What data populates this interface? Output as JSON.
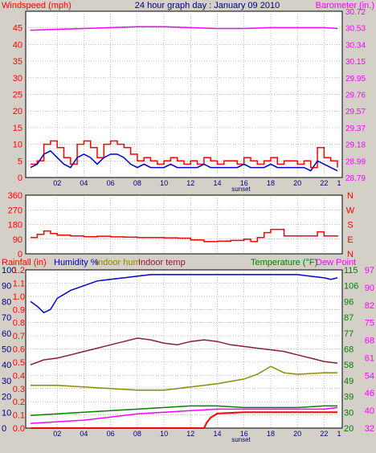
{
  "colors": {
    "background": "#d4d0c8",
    "plot_bg": "#ffffff",
    "grid": "#808080",
    "red": "#ff0000",
    "blue": "#0000cc",
    "magenta": "#ff00ff",
    "maroon": "#8b1a3a",
    "olive": "#8b8b00",
    "green": "#008000"
  },
  "chart_data": [
    {
      "type": "line",
      "title": "24 hour graph day : January 09 2010",
      "ylabel": "Windspeed (mph)",
      "y2label": "Barometer (in.)",
      "x_ticks": [
        "02",
        "04",
        "06",
        "08",
        "10",
        "12",
        "14",
        "16",
        "18",
        "20",
        "22"
      ],
      "x_annotation": "sunset",
      "end_tick": "1",
      "ylim": [
        0,
        50
      ],
      "y_ticks": [
        0,
        5,
        10,
        15,
        20,
        25,
        30,
        35,
        40,
        45
      ],
      "y2_ticks": [
        "28.79",
        "28.99",
        "29.18",
        "29.37",
        "29.57",
        "29.76",
        "29.95",
        "30.15",
        "30.34",
        "30.53",
        "30.72"
      ],
      "series": [
        {
          "key": "gust",
          "color_key": "red",
          "x": [
            0,
            0.5,
            1,
            1.5,
            2,
            2.5,
            3,
            3.5,
            4,
            4.5,
            5,
            5.5,
            6,
            6.5,
            7,
            7.5,
            8,
            8.5,
            9,
            9.5,
            10,
            10.5,
            11,
            11.5,
            12,
            12.5,
            13,
            13.5,
            14,
            14.5,
            15,
            15.5,
            16,
            16.5,
            17,
            17.5,
            18,
            18.5,
            19,
            19.5,
            20,
            20.5,
            21,
            21.5,
            22,
            22.5,
            23
          ],
          "values": [
            4,
            5,
            10,
            11,
            9,
            6,
            4,
            10,
            11,
            9,
            6,
            10,
            11,
            10,
            9,
            7,
            5,
            6,
            5,
            4,
            5,
            6,
            5,
            4,
            5,
            4,
            6,
            5,
            4,
            5,
            5,
            4,
            6,
            5,
            4,
            5,
            6,
            4,
            5,
            5,
            4,
            5,
            3,
            9,
            6,
            5,
            3
          ]
        },
        {
          "key": "average",
          "color_key": "blue",
          "x": [
            0,
            0.5,
            1,
            1.5,
            2,
            2.5,
            3,
            3.5,
            4,
            4.5,
            5,
            5.5,
            6,
            6.5,
            7,
            7.5,
            8,
            8.5,
            9,
            9.5,
            10,
            10.5,
            11,
            11.5,
            12,
            12.5,
            13,
            13.5,
            14,
            14.5,
            15,
            15.5,
            16,
            16.5,
            17,
            17.5,
            18,
            18.5,
            19,
            19.5,
            20,
            20.5,
            21,
            21.5,
            22,
            22.5,
            23
          ],
          "values": [
            3,
            4,
            7,
            8,
            6,
            4,
            3,
            6,
            7,
            6,
            4,
            6,
            7,
            7,
            6,
            4,
            3,
            4,
            3,
            3,
            3,
            4,
            3,
            3,
            3,
            3,
            4,
            3,
            3,
            3,
            3,
            3,
            4,
            3,
            3,
            3,
            4,
            3,
            3,
            3,
            3,
            3,
            2,
            5,
            4,
            3,
            2
          ]
        },
        {
          "key": "barometer",
          "color_key": "magenta",
          "axis": "right",
          "x": [
            0,
            2,
            4,
            6,
            8,
            10,
            12,
            14,
            16,
            18,
            20,
            22,
            23
          ],
          "values": [
            30.5,
            30.51,
            30.52,
            30.53,
            30.54,
            30.54,
            30.53,
            30.52,
            30.52,
            30.53,
            30.53,
            30.53,
            30.52
          ]
        }
      ]
    },
    {
      "type": "line",
      "title": "",
      "ylabel": "",
      "x_ticks": [],
      "ylim": [
        0,
        360
      ],
      "y_ticks": [
        0,
        90,
        180,
        270,
        360
      ],
      "y2_ticks": [
        "N",
        "E",
        "S",
        "W",
        "N"
      ],
      "series": [
        {
          "key": "wind_direction",
          "color_key": "red",
          "x": [
            0,
            0.5,
            1,
            1.5,
            2,
            3,
            4,
            5,
            6,
            7,
            8,
            9,
            10,
            11,
            12,
            13,
            14,
            15,
            16,
            16.5,
            17,
            17.5,
            18,
            19,
            20,
            21,
            21.5,
            22,
            23
          ],
          "values": [
            100,
            120,
            140,
            125,
            115,
            110,
            105,
            108,
            104,
            102,
            100,
            100,
            98,
            96,
            85,
            75,
            78,
            82,
            90,
            75,
            100,
            130,
            150,
            110,
            110,
            110,
            135,
            110,
            105
          ]
        }
      ]
    },
    {
      "type": "line",
      "title": "",
      "ylabel": "Rainfall (in)",
      "legend": [
        "Humidity %",
        "Indoor hum",
        "Indoor temp"
      ],
      "right_legend": [
        "Temperature (°F)",
        "Dew Point"
      ],
      "x_ticks": [
        "02",
        "04",
        "06",
        "08",
        "10",
        "12",
        "14",
        "16",
        "18",
        "20",
        "22"
      ],
      "x_annotation": "sunset",
      "end_tick": "1",
      "ylim": [
        0,
        1.2
      ],
      "y_ticks_left_humidity": [
        "0",
        "10",
        "20",
        "30",
        "40",
        "50",
        "60",
        "70",
        "80",
        "90",
        "100"
      ],
      "y_ticks_left_rain": [
        "0.0",
        "0.1",
        "0.2",
        "0.3",
        "0.4",
        "0.5",
        "0.6",
        "0.7",
        "0.8",
        "0.9",
        "1.0",
        "1.1",
        "1.2"
      ],
      "y2_ticks_a": [
        "20",
        "30",
        "39",
        "49",
        "58",
        "68",
        "77",
        "87",
        "96",
        "106",
        "115"
      ],
      "y2_ticks_b": [
        "32",
        "40",
        "46",
        "54",
        "61",
        "68",
        "75",
        "82",
        "90",
        "97"
      ],
      "series": [
        {
          "key": "humidity",
          "color_key": "blue",
          "x": [
            0,
            0.5,
            1,
            1.5,
            2,
            3,
            4,
            5,
            6,
            7,
            8,
            9,
            10,
            12,
            14,
            16,
            18,
            20,
            22,
            22.5,
            23
          ],
          "values": [
            80,
            77,
            73,
            75,
            82,
            87,
            90,
            93,
            94,
            95,
            96,
            97,
            97,
            97,
            97,
            97,
            97,
            97,
            95,
            94,
            95
          ]
        },
        {
          "key": "indoor_temp",
          "color_key": "maroon",
          "x": [
            0,
            1,
            2,
            3,
            4,
            5,
            6,
            7,
            8,
            9,
            10,
            11,
            12,
            13,
            14,
            15,
            16,
            17,
            18,
            19,
            20,
            21,
            22,
            23
          ],
          "values": [
            58,
            61,
            62,
            64,
            66,
            68,
            70,
            72,
            74,
            73,
            71,
            70,
            72,
            73,
            72,
            70,
            69,
            68,
            67,
            66,
            64,
            62,
            60,
            59
          ]
        },
        {
          "key": "indoor_hum",
          "color_key": "olive",
          "x": [
            0,
            2,
            4,
            6,
            8,
            10,
            12,
            14,
            16,
            17,
            18,
            19,
            20,
            22,
            23
          ],
          "values": [
            27,
            27,
            26,
            25,
            24,
            24,
            26,
            28,
            31,
            34,
            39,
            35,
            34,
            35,
            35
          ]
        },
        {
          "key": "dew_point",
          "color_key": "magenta",
          "x": [
            0,
            2,
            4,
            6,
            8,
            10,
            12,
            14,
            16,
            18,
            20,
            22,
            23
          ],
          "values": [
            3,
            4,
            5,
            7,
            9,
            10,
            11,
            12,
            12,
            12,
            12,
            12,
            13
          ]
        },
        {
          "key": "temperature",
          "color_key": "green",
          "x": [
            0,
            2,
            4,
            6,
            8,
            10,
            12,
            14,
            16,
            18,
            20,
            22,
            23
          ],
          "values": [
            8,
            9,
            10,
            11,
            12,
            13,
            14,
            14,
            13,
            13,
            13,
            14,
            14
          ]
        },
        {
          "key": "rainfall",
          "color_key": "red",
          "x": [
            0,
            13,
            13.2,
            13.5,
            14,
            16,
            18,
            20,
            22,
            23
          ],
          "values": [
            0,
            0,
            0.04,
            0.08,
            0.11,
            0.12,
            0.12,
            0.12,
            0.12,
            0.12
          ]
        }
      ]
    }
  ]
}
